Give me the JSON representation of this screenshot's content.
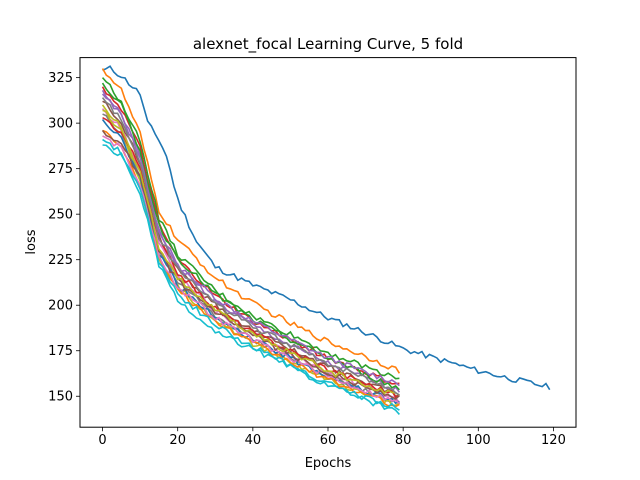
{
  "chart_data": {
    "type": "line",
    "title": "alexnet_focal Learning Curve, 5 fold",
    "xlabel": "Epochs",
    "ylabel": "loss",
    "xlim": [
      -6,
      126
    ],
    "ylim": [
      133,
      336
    ],
    "xticks": [
      0,
      20,
      40,
      60,
      80,
      100,
      120
    ],
    "yticks": [
      150,
      175,
      200,
      225,
      250,
      275,
      300,
      325
    ],
    "grid": false,
    "legend": "none",
    "colors": [
      "#1f77b4",
      "#ff7f0e",
      "#2ca02c",
      "#d62728",
      "#9467bd",
      "#8c564b",
      "#e377c2",
      "#7f7f7f",
      "#bcbd22",
      "#17becf"
    ],
    "series": [
      {
        "color": "#1f77b4",
        "x": [
          0,
          2,
          5,
          10,
          12,
          15,
          17,
          20,
          25,
          30,
          40,
          50,
          60,
          70,
          80,
          90,
          100,
          110,
          119
        ],
        "values": [
          329,
          330,
          326,
          316,
          300,
          291,
          282,
          258,
          235,
          221,
          211,
          203,
          193,
          185,
          176,
          170,
          164,
          159,
          155
        ]
      },
      {
        "color": "#ff7f0e",
        "x": [
          0,
          5,
          10,
          15,
          20,
          30,
          40,
          50,
          60,
          70,
          79
        ],
        "values": [
          330,
          318,
          294,
          252,
          236,
          215,
          201,
          190,
          180,
          172,
          164
        ]
      },
      {
        "color": "#2ca02c",
        "x": [
          0,
          5,
          10,
          15,
          20,
          30,
          40,
          50,
          60,
          70,
          79
        ],
        "values": [
          325,
          312,
          290,
          248,
          228,
          208,
          194,
          184,
          174,
          166,
          160
        ]
      },
      {
        "color": "#d62728",
        "x": [
          0,
          5,
          10,
          15,
          20,
          30,
          40,
          50,
          60,
          70,
          79
        ],
        "values": [
          320,
          308,
          286,
          244,
          225,
          205,
          191,
          181,
          171,
          163,
          156
        ]
      },
      {
        "color": "#9467bd",
        "x": [
          0,
          5,
          10,
          15,
          20,
          30,
          40,
          50,
          60,
          70,
          79
        ],
        "values": [
          316,
          304,
          282,
          241,
          222,
          202,
          189,
          178,
          168,
          160,
          153
        ]
      },
      {
        "color": "#8c564b",
        "x": [
          0,
          5,
          10,
          15,
          20,
          30,
          40,
          50,
          60,
          70,
          79
        ],
        "values": [
          312,
          300,
          279,
          238,
          219,
          200,
          186,
          176,
          166,
          158,
          150
        ]
      },
      {
        "color": "#e377c2",
        "x": [
          0,
          5,
          10,
          15,
          20,
          30,
          40,
          50,
          60,
          70,
          79
        ],
        "values": [
          308,
          297,
          275,
          234,
          216,
          197,
          184,
          173,
          163,
          155,
          148
        ]
      },
      {
        "color": "#7f7f7f",
        "x": [
          0,
          5,
          10,
          15,
          20,
          30,
          40,
          50,
          60,
          70,
          79
        ],
        "values": [
          305,
          294,
          272,
          230,
          213,
          194,
          181,
          171,
          161,
          153,
          146
        ]
      },
      {
        "color": "#bcbd22",
        "x": [
          0,
          5,
          10,
          15,
          20,
          30,
          40,
          50,
          60,
          70,
          79
        ],
        "values": [
          310,
          298,
          268,
          226,
          210,
          192,
          179,
          169,
          159,
          151,
          145
        ]
      },
      {
        "color": "#17becf",
        "x": [
          0,
          5,
          10,
          15,
          20,
          30,
          40,
          50,
          60,
          70,
          79
        ],
        "values": [
          288,
          282,
          262,
          222,
          202,
          185,
          176,
          166,
          156,
          148,
          141
        ]
      },
      {
        "color": "#1f77b4",
        "x": [
          0,
          5,
          10,
          15,
          20,
          30,
          40,
          50,
          60,
          70,
          79
        ],
        "values": [
          302,
          292,
          270,
          229,
          211,
          193,
          181,
          171,
          161,
          153,
          147
        ]
      },
      {
        "color": "#ff7f0e",
        "x": [
          0,
          5,
          10,
          15,
          20,
          30,
          40,
          50,
          60,
          70,
          79
        ],
        "values": [
          296,
          288,
          266,
          226,
          208,
          191,
          179,
          169,
          159,
          151,
          144
        ]
      },
      {
        "color": "#2ca02c",
        "x": [
          0,
          5,
          10,
          15,
          20,
          30,
          40,
          50,
          60,
          70,
          79
        ],
        "values": [
          322,
          310,
          284,
          244,
          226,
          206,
          192,
          181,
          171,
          162,
          154
        ]
      },
      {
        "color": "#d62728",
        "x": [
          0,
          5,
          10,
          15,
          20,
          30,
          40,
          50,
          60,
          70,
          79
        ],
        "values": [
          303,
          295,
          276,
          236,
          218,
          198,
          185,
          175,
          165,
          157,
          150
        ]
      },
      {
        "color": "#9467bd",
        "x": [
          0,
          5,
          10,
          15,
          20,
          30,
          40,
          50,
          60,
          70,
          79
        ],
        "values": [
          318,
          306,
          280,
          240,
          222,
          204,
          191,
          181,
          171,
          163,
          157
        ]
      },
      {
        "color": "#e377c2",
        "x": [
          0,
          5,
          10,
          15,
          20,
          30,
          40,
          50,
          60,
          70,
          79
        ],
        "values": [
          293,
          286,
          266,
          227,
          210,
          193,
          181,
          171,
          161,
          153,
          146
        ]
      },
      {
        "color": "#8c564b",
        "x": [
          0,
          5,
          10,
          15,
          20,
          30,
          40,
          50,
          60,
          70,
          79
        ],
        "values": [
          296,
          289,
          270,
          230,
          213,
          196,
          183,
          173,
          163,
          155,
          149
        ]
      },
      {
        "color": "#17becf",
        "x": [
          0,
          5,
          10,
          15,
          20,
          30,
          40,
          50,
          60,
          70,
          79
        ],
        "values": [
          291,
          284,
          264,
          224,
          206,
          189,
          177,
          167,
          157,
          149,
          143
        ]
      },
      {
        "color": "#bcbd22",
        "x": [
          0,
          5,
          10,
          15,
          20,
          30,
          40,
          50,
          60,
          70,
          79
        ],
        "values": [
          307,
          296,
          272,
          232,
          215,
          197,
          184,
          174,
          164,
          156,
          150
        ]
      },
      {
        "color": "#7f7f7f",
        "x": [
          0,
          5,
          10,
          15,
          20,
          30,
          40,
          50,
          60,
          70,
          79
        ],
        "values": [
          314,
          302,
          278,
          238,
          220,
          201,
          188,
          178,
          168,
          160,
          152
        ]
      }
    ]
  }
}
